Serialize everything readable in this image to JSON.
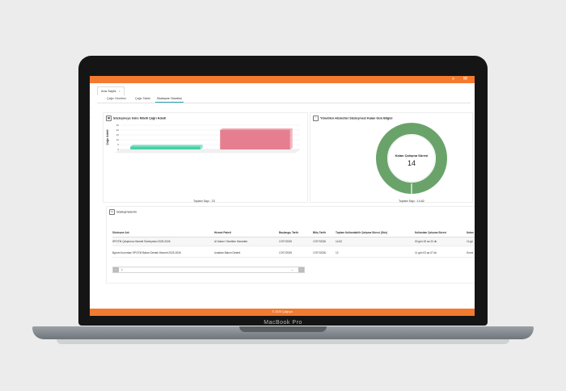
{
  "device": {
    "brand_label": "MacBook Pro"
  },
  "topbar": {
    "icons": [
      "search-icon",
      "mail-icon"
    ],
    "color": "#f37a2f"
  },
  "page_tab": {
    "label": "Ana Sayfa",
    "close": "×"
  },
  "tabs": [
    {
      "label": "Çağrı Yönetimi"
    },
    {
      "label": "Çağrı Takibi"
    },
    {
      "label": "Sözleşme Yönetimi",
      "active": true
    }
  ],
  "left_card": {
    "title": "Sözleşmeye Göre Nitelli Çağrı Adedi",
    "total": "Toplam Sayı : 23"
  },
  "right_card": {
    "title": "Yönetilen Hizmetler Sözleşmesi Kalan Gün Bilgisi",
    "center_label": "Kalan Çalışma Süresi",
    "center_value": "14",
    "total": "Toplam Sayı : 14.62"
  },
  "chart_data": [
    {
      "type": "bar",
      "ylabel": "Çağrı Adedi",
      "ylim": [
        0,
        25
      ],
      "yticks": [
        "25",
        "20",
        "15",
        "10",
        "5",
        "0"
      ],
      "categories": [
        "",
        ""
      ],
      "values": [
        3,
        20
      ],
      "colors": [
        "#46d1a8",
        "#e57f8f"
      ]
    },
    {
      "type": "pie",
      "values": [
        14.62
      ],
      "colors": [
        "#6aa36a"
      ]
    }
  ],
  "contracts": {
    "header": "Sözleşmelerim",
    "columns": [
      "Sözleşme Adı",
      "Hizmet Paketi",
      "Başlangıç Tarihi",
      "Bitiş Tarihi",
      "Toplam Kullanılabilir Çalışma Süresi (Gün)",
      "Kullanılan Çalışma Süresi",
      "Kalan"
    ],
    "rows": [
      [
        "SPGTM Çalıştırma Hizmeti Sözleşmesi 2025-2026",
        "Al Kaiser Yönetilen Hizmetler",
        "17/07/2025",
        "17/07/2026",
        "14.62",
        "00 gün 00 sa 22 dk",
        "14 gü"
      ],
      [
        "Bgrum Kurumları SPGTM Bakım Destek Hizmeti 2025-2026",
        "Uzaktan Bakım Destek",
        "17/07/2025",
        "17/07/2026",
        "12",
        "11 gün 03 sa 07 dk",
        "Sınırs"
      ]
    ],
    "pager_value": "1"
  },
  "footer": {
    "text": "© 2025 Çağrıya"
  }
}
